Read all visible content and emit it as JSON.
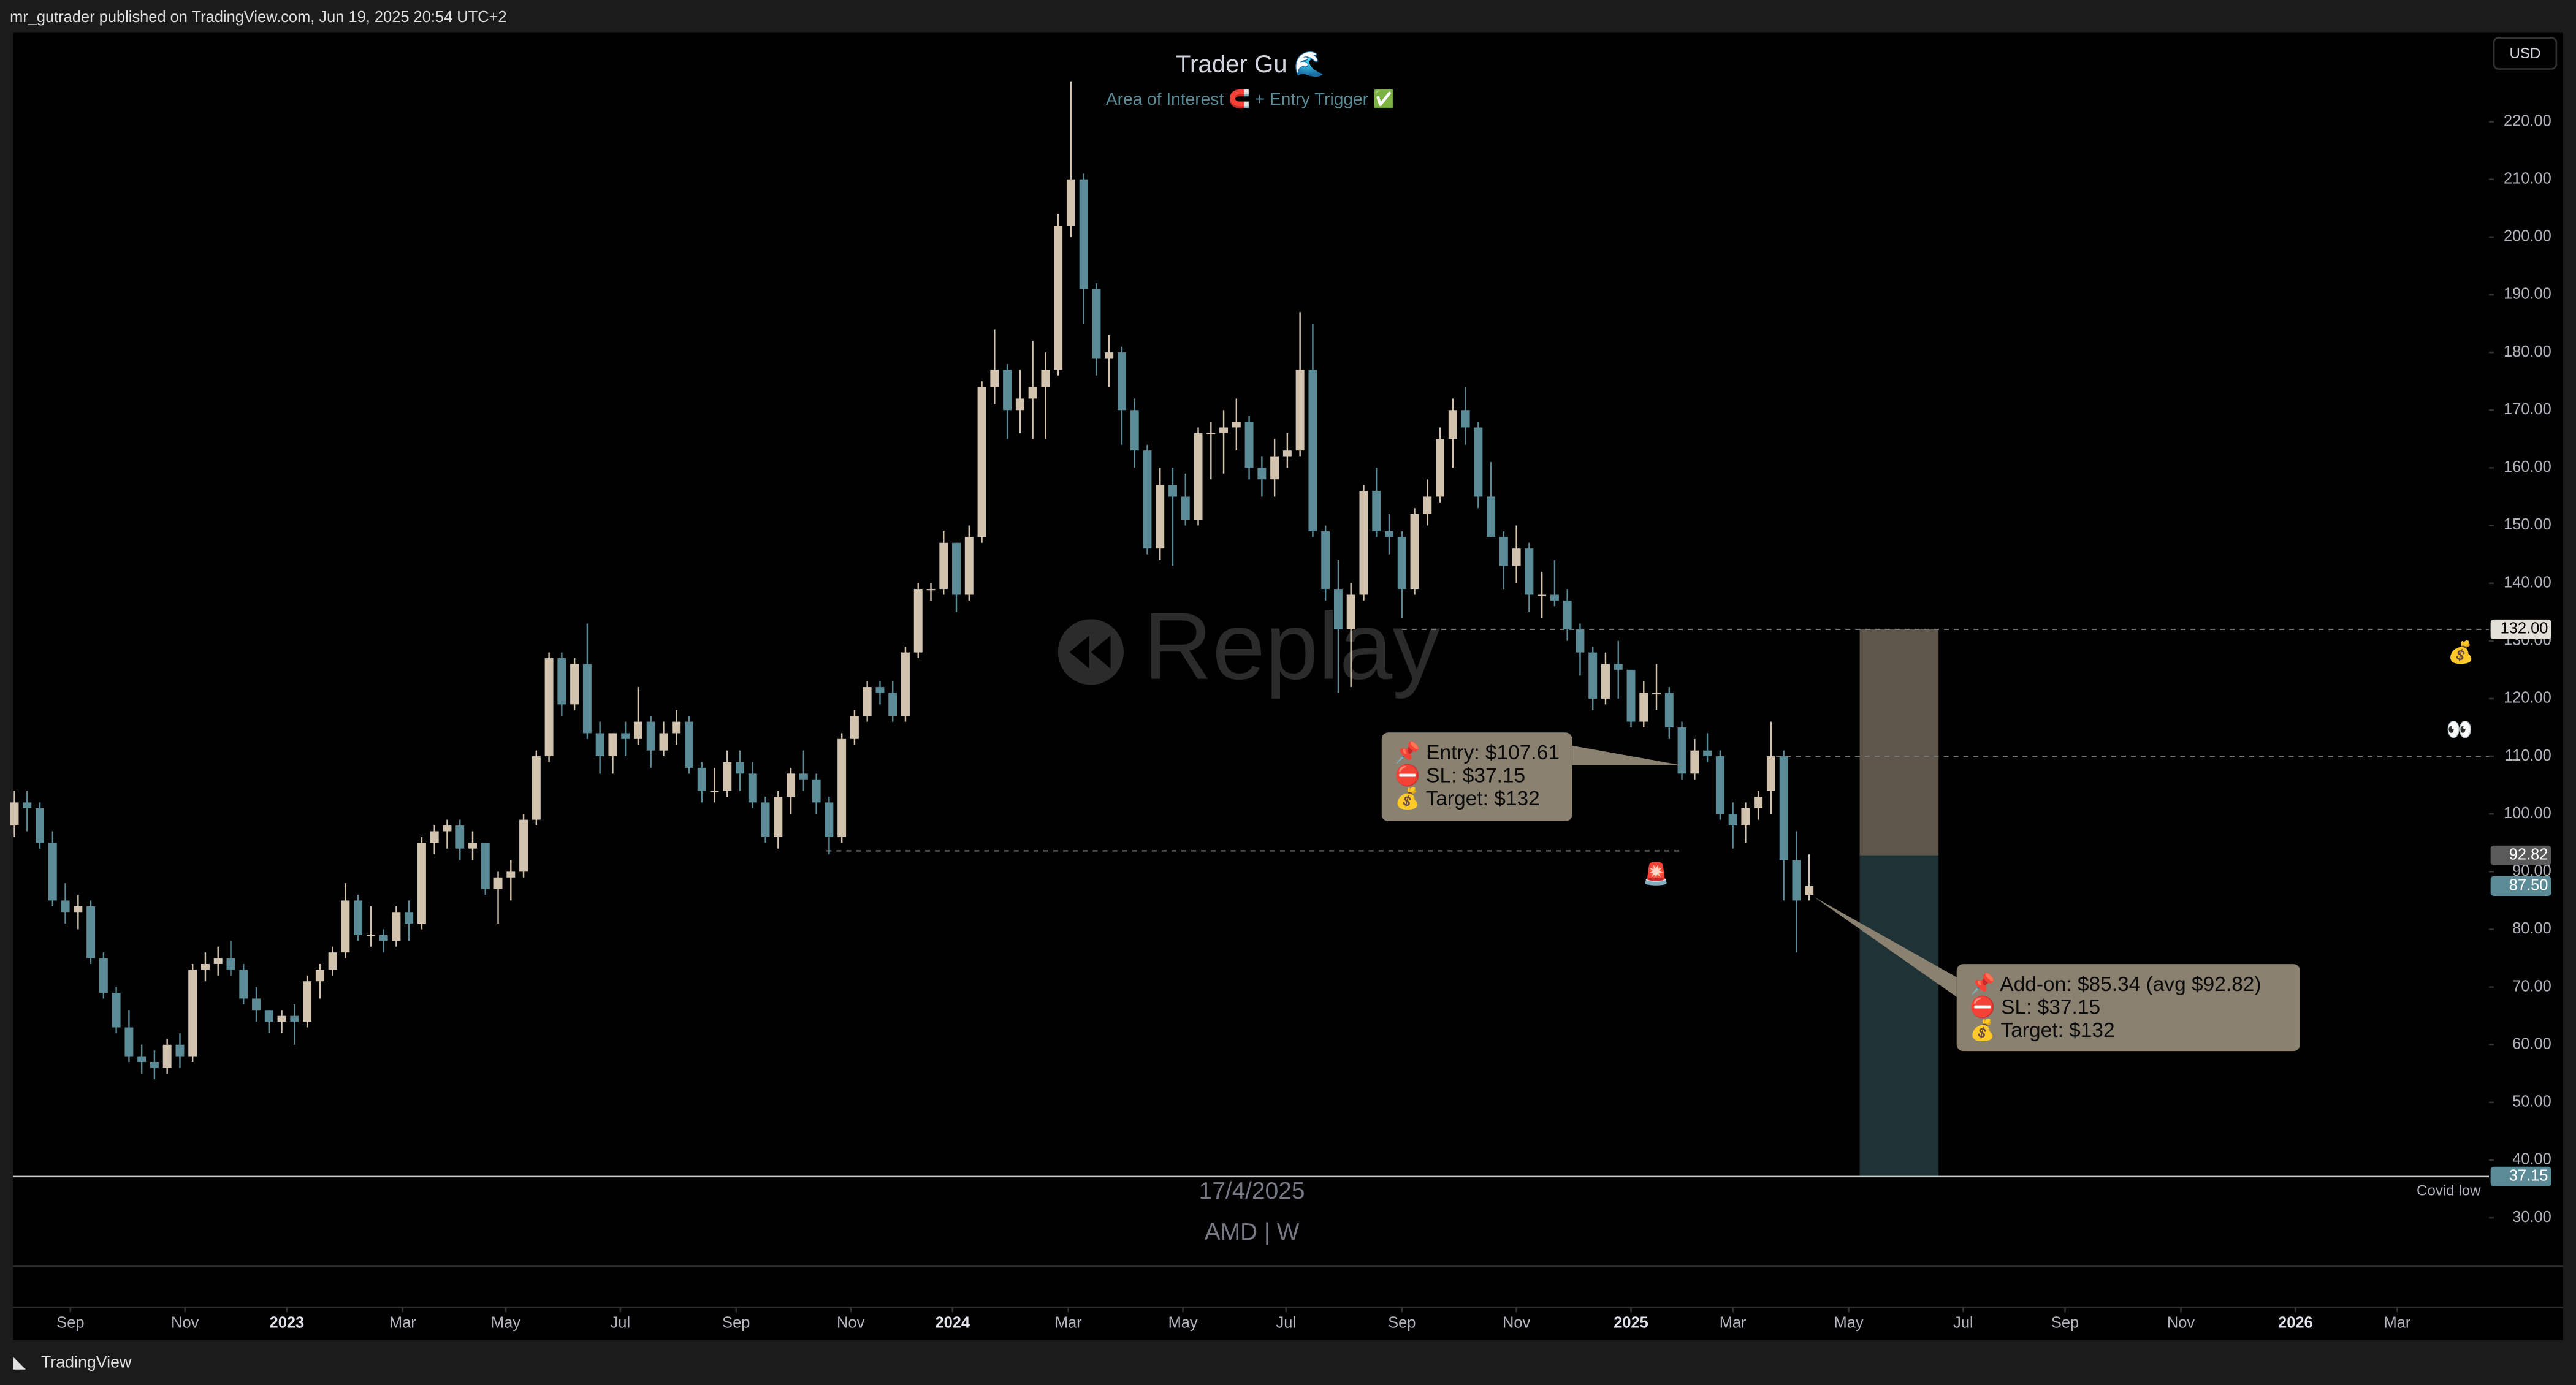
{
  "header": "mr_gutrader published on TradingView.com, Jun 19, 2025 20:54 UTC+2",
  "footer": "TradingView",
  "currency": "USD",
  "watermark": "Replay",
  "replay_date": "17/4/2025",
  "symbol": "AMD | W",
  "chart_data": {
    "type": "candlestick",
    "title": "Trader Gu 🌊",
    "subtitle": "Area of Interest 🧲 + Entry Trigger ✅",
    "up_color": "#d1c3ad",
    "down_color": "#5b8b97",
    "ohlc": [
      [
        98,
        104,
        96,
        102
      ],
      [
        102,
        104,
        97,
        101
      ],
      [
        101,
        102,
        94,
        95
      ],
      [
        95,
        97,
        84,
        85
      ],
      [
        85,
        88,
        81,
        83
      ],
      [
        83,
        86,
        80,
        84
      ],
      [
        84,
        85,
        74,
        75
      ],
      [
        75,
        76,
        68,
        69
      ],
      [
        69,
        70,
        62,
        63
      ],
      [
        63,
        66,
        57,
        58
      ],
      [
        58,
        60,
        55,
        57
      ],
      [
        57,
        59,
        54,
        56
      ],
      [
        56,
        61,
        55,
        60
      ],
      [
        60,
        62,
        56,
        58
      ],
      [
        58,
        74,
        57,
        73
      ],
      [
        73,
        76,
        71,
        74
      ],
      [
        74,
        77,
        72,
        75
      ],
      [
        75,
        78,
        72,
        73
      ],
      [
        73,
        74,
        67,
        68
      ],
      [
        68,
        70,
        64,
        66
      ],
      [
        66,
        66,
        62,
        64
      ],
      [
        64,
        66,
        62,
        65
      ],
      [
        65,
        67,
        60,
        64
      ],
      [
        64,
        72,
        63,
        71
      ],
      [
        71,
        74,
        68,
        73
      ],
      [
        73,
        77,
        72,
        76
      ],
      [
        76,
        88,
        75,
        85
      ],
      [
        85,
        86,
        78,
        79
      ],
      [
        79,
        84,
        77,
        79
      ],
      [
        79,
        80,
        76,
        78
      ],
      [
        78,
        84,
        77,
        83
      ],
      [
        83,
        85,
        78,
        81
      ],
      [
        81,
        96,
        80,
        95
      ],
      [
        95,
        98,
        93,
        97
      ],
      [
        97,
        99,
        94,
        98
      ],
      [
        98,
        99,
        92,
        94
      ],
      [
        94,
        97,
        92,
        95
      ],
      [
        95,
        95,
        86,
        87
      ],
      [
        87,
        90,
        81,
        89
      ],
      [
        89,
        92,
        85,
        90
      ],
      [
        90,
        100,
        89,
        99
      ],
      [
        99,
        111,
        98,
        110
      ],
      [
        110,
        128,
        109,
        127
      ],
      [
        127,
        128,
        117,
        119
      ],
      [
        119,
        127,
        118,
        126
      ],
      [
        126,
        133,
        113,
        114
      ],
      [
        114,
        116,
        107,
        110
      ],
      [
        110,
        114,
        107,
        114
      ],
      [
        114,
        116,
        110,
        113
      ],
      [
        113,
        122,
        112,
        116
      ],
      [
        116,
        117,
        108,
        111
      ],
      [
        111,
        116,
        110,
        114
      ],
      [
        114,
        118,
        112,
        116
      ],
      [
        116,
        117,
        107,
        108
      ],
      [
        108,
        109,
        102,
        104
      ],
      [
        104,
        108,
        102,
        104
      ],
      [
        104,
        111,
        103,
        109
      ],
      [
        109,
        111,
        104,
        107
      ],
      [
        107,
        109,
        101,
        102
      ],
      [
        102,
        103,
        95,
        96
      ],
      [
        96,
        104,
        94,
        103
      ],
      [
        103,
        108,
        100,
        107
      ],
      [
        107,
        111,
        104,
        106
      ],
      [
        106,
        107,
        100,
        102
      ],
      [
        102,
        103,
        93,
        96
      ],
      [
        96,
        114,
        95,
        113
      ],
      [
        113,
        118,
        112,
        117
      ],
      [
        117,
        123,
        116,
        122
      ],
      [
        122,
        123,
        119,
        121
      ],
      [
        121,
        123,
        116,
        117
      ],
      [
        117,
        129,
        116,
        128
      ],
      [
        128,
        140,
        127,
        139
      ],
      [
        139,
        140,
        137,
        139
      ],
      [
        139,
        149,
        138,
        147
      ],
      [
        147,
        147,
        135,
        138
      ],
      [
        138,
        150,
        137,
        148
      ],
      [
        148,
        175,
        147,
        174
      ],
      [
        174,
        184,
        171,
        177
      ],
      [
        177,
        178,
        165,
        170
      ],
      [
        170,
        177,
        166,
        172
      ],
      [
        172,
        182,
        165,
        174
      ],
      [
        174,
        180,
        165,
        177
      ],
      [
        177,
        204,
        176,
        202
      ],
      [
        202,
        227,
        200,
        210
      ],
      [
        210,
        211,
        185,
        191
      ],
      [
        191,
        192,
        176,
        179
      ],
      [
        179,
        183,
        174,
        180
      ],
      [
        180,
        181,
        164,
        170
      ],
      [
        170,
        172,
        160,
        163
      ],
      [
        163,
        164,
        145,
        146
      ],
      [
        146,
        160,
        144,
        157
      ],
      [
        157,
        160,
        143,
        155
      ],
      [
        155,
        159,
        150,
        151
      ],
      [
        151,
        167,
        150,
        166
      ],
      [
        166,
        168,
        158,
        166
      ],
      [
        166,
        170,
        159,
        167
      ],
      [
        167,
        172,
        163,
        168
      ],
      [
        168,
        169,
        158,
        160
      ],
      [
        160,
        162,
        155,
        158
      ],
      [
        158,
        165,
        155,
        162
      ],
      [
        162,
        166,
        160,
        163
      ],
      [
        163,
        187,
        162,
        177
      ],
      [
        177,
        185,
        148,
        149
      ],
      [
        149,
        150,
        137,
        139
      ],
      [
        139,
        144,
        121,
        132
      ],
      [
        132,
        140,
        122,
        138
      ],
      [
        138,
        157,
        137,
        156
      ],
      [
        156,
        160,
        148,
        149
      ],
      [
        149,
        152,
        145,
        148
      ],
      [
        148,
        149,
        134,
        139
      ],
      [
        139,
        153,
        138,
        152
      ],
      [
        152,
        158,
        150,
        155
      ],
      [
        155,
        167,
        154,
        165
      ],
      [
        165,
        172,
        160,
        170
      ],
      [
        170,
        174,
        164,
        167
      ],
      [
        167,
        168,
        153,
        155
      ],
      [
        155,
        161,
        148,
        148
      ],
      [
        148,
        149,
        139,
        143
      ],
      [
        143,
        150,
        140,
        146
      ],
      [
        146,
        147,
        135,
        138
      ],
      [
        138,
        142,
        134,
        138
      ],
      [
        138,
        144,
        136,
        137
      ],
      [
        137,
        139,
        130,
        132
      ],
      [
        132,
        133,
        124,
        128
      ],
      [
        128,
        129,
        118,
        120
      ],
      [
        120,
        128,
        119,
        126
      ],
      [
        126,
        130,
        120,
        125
      ],
      [
        125,
        125,
        115,
        116
      ],
      [
        116,
        123,
        115,
        121
      ],
      [
        121,
        126,
        118,
        121
      ],
      [
        121,
        122,
        113,
        115
      ],
      [
        115,
        116,
        106,
        107
      ],
      [
        107,
        113,
        106,
        111
      ],
      [
        111,
        114,
        109,
        110
      ],
      [
        110,
        111,
        99,
        100
      ],
      [
        100,
        102,
        94,
        98
      ],
      [
        98,
        102,
        95,
        101
      ],
      [
        101,
        104,
        99,
        103
      ],
      [
        104,
        116,
        100,
        110
      ],
      [
        110,
        111,
        85,
        92
      ],
      [
        92,
        97,
        76,
        85
      ],
      [
        86,
        93,
        85,
        87.5
      ]
    ],
    "xlim": [
      -0.1,
      194.4
    ],
    "xticks": [
      {
        "value": 4.4,
        "label": "Sep"
      },
      {
        "value": 13.4,
        "label": "Nov"
      },
      {
        "value": 21.4,
        "label": "2023"
      },
      {
        "value": 30.5,
        "label": "Mar"
      },
      {
        "value": 38.6,
        "label": "May"
      },
      {
        "value": 47.6,
        "label": "Jul"
      },
      {
        "value": 56.7,
        "label": "Sep"
      },
      {
        "value": 65.7,
        "label": "Nov"
      },
      {
        "value": 73.7,
        "label": "2024"
      },
      {
        "value": 82.8,
        "label": "Mar"
      },
      {
        "value": 91.8,
        "label": "May"
      },
      {
        "value": 99.9,
        "label": "Jul"
      },
      {
        "value": 109,
        "label": "Sep"
      },
      {
        "value": 118,
        "label": "Nov"
      },
      {
        "value": 127,
        "label": "2025"
      },
      {
        "value": 135,
        "label": "Mar"
      },
      {
        "value": 144.1,
        "label": "May"
      },
      {
        "value": 153.1,
        "label": "Jul"
      },
      {
        "value": 161.1,
        "label": "Sep"
      },
      {
        "value": 170.2,
        "label": "Nov"
      },
      {
        "value": 179.2,
        "label": "2026"
      },
      {
        "value": 187.2,
        "label": "Mar"
      }
    ],
    "ylim": [
      21.6,
      235.4
    ],
    "yticks": [
      {
        "value": 30,
        "label": "30.00"
      },
      {
        "value": 40,
        "label": "40.00"
      },
      {
        "value": 50,
        "label": "50.00"
      },
      {
        "value": 60,
        "label": "60.00"
      },
      {
        "value": 70,
        "label": "70.00"
      },
      {
        "value": 80,
        "label": "80.00"
      },
      {
        "value": 90,
        "label": "90.00"
      },
      {
        "value": 100,
        "label": "100.00"
      },
      {
        "value": 110,
        "label": "110.00"
      },
      {
        "value": 120,
        "label": "120.00"
      },
      {
        "value": 130,
        "label": "130.00"
      },
      {
        "value": 140,
        "label": "140.00"
      },
      {
        "value": 150,
        "label": "150.00"
      },
      {
        "value": 160,
        "label": "160.00"
      },
      {
        "value": 170,
        "label": "170.00"
      },
      {
        "value": 180,
        "label": "180.00"
      },
      {
        "value": 190,
        "label": "190.00"
      },
      {
        "value": 200,
        "label": "200.00"
      },
      {
        "value": 210,
        "label": "210.00"
      },
      {
        "value": 220,
        "label": "220.00"
      }
    ],
    "levels": [
      132,
      110,
      93.6
    ],
    "covid_low": {
      "value": 37.15,
      "label": "Covid low"
    },
    "position": {
      "target": 132,
      "entry": 92.82,
      "stop": 37.15,
      "profit_color": "#5e564b",
      "loss_color": "#1f3337"
    },
    "price_labels": [
      {
        "value": 132,
        "label": "132.00",
        "color": "#e3e0da",
        "text_color": "#000000"
      },
      {
        "value": 92.82,
        "label": "92.82",
        "color": "#5a5a5a",
        "text_color": "#ffffff"
      },
      {
        "value": 87.5,
        "label": "87.50",
        "color": "#5b8b97",
        "text_color": "#ffffff"
      },
      {
        "value": 37.15,
        "label": "37.15",
        "color": "#5b8b97",
        "text_color": "#ffffff"
      }
    ],
    "callouts": [
      {
        "lines": [
          "📌 Entry: $107.61",
          "⛔ SL: $37.15",
          "💰 Target: $132"
        ]
      },
      {
        "lines": [
          "📌 Add-on: $85.34 (avg $92.82)",
          "⛔ SL: $37.15",
          "💰 Target: $132"
        ]
      }
    ],
    "markers": [
      "💰",
      "👀",
      "🚨"
    ]
  }
}
